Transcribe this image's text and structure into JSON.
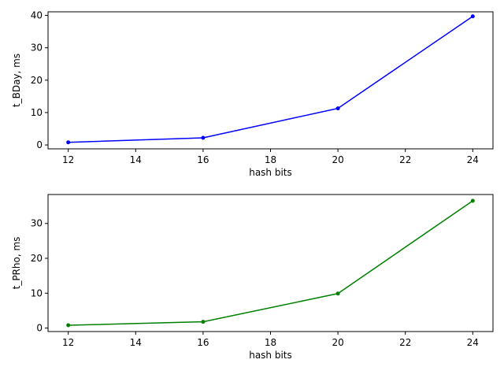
{
  "chart_data": [
    {
      "type": "line",
      "xlabel": "hash bits",
      "ylabel": "t_BDay, ms",
      "x": [
        12,
        16,
        20,
        24
      ],
      "series": [
        {
          "values": [
            0.8,
            2.2,
            11.3,
            39.7
          ],
          "color": "#0000ff"
        }
      ],
      "xlim": [
        11.4,
        24.6
      ],
      "ylim": [
        -1.2,
        41.1
      ],
      "xticks": [
        12,
        14,
        16,
        18,
        20,
        22,
        24
      ],
      "yticks": [
        0,
        10,
        20,
        30,
        40
      ],
      "grid": false,
      "marker": "point"
    },
    {
      "type": "line",
      "xlabel": "hash bits",
      "ylabel": "t_PRho, ms",
      "x": [
        12,
        16,
        20,
        24
      ],
      "series": [
        {
          "values": [
            0.8,
            1.8,
            9.9,
            36.5
          ],
          "color": "#008000"
        }
      ],
      "xlim": [
        11.4,
        24.6
      ],
      "ylim": [
        -1.0,
        38.3
      ],
      "xticks": [
        12,
        14,
        16,
        18,
        20,
        22,
        24
      ],
      "yticks": [
        0,
        10,
        20,
        30
      ],
      "grid": false,
      "marker": "point"
    }
  ]
}
